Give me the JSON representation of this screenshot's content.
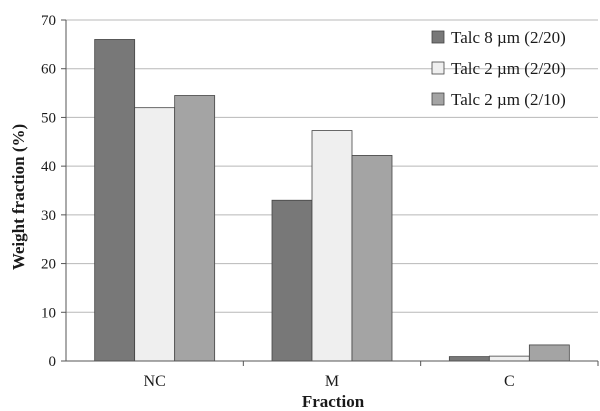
{
  "chart_data": {
    "type": "bar",
    "title": "",
    "xlabel": "Fraction",
    "ylabel": "Weight fraction (%)",
    "categories": [
      "NC",
      "M",
      "C"
    ],
    "ylim": [
      0,
      70
    ],
    "yticks": [
      0,
      10,
      20,
      30,
      40,
      50,
      60,
      70
    ],
    "grid": true,
    "legend_position": "top-right",
    "series": [
      {
        "name": "Talc 8 µm (2/20)",
        "color": "#787878",
        "values": [
          66,
          33,
          0.9
        ]
      },
      {
        "name": "Talc 2 µm (2/20)",
        "color": "#efefef",
        "values": [
          52,
          47.3,
          1
        ]
      },
      {
        "name": "Talc 2 µm (2/10)",
        "color": "#a4a4a4",
        "values": [
          54.5,
          42.2,
          3.3
        ]
      }
    ]
  }
}
